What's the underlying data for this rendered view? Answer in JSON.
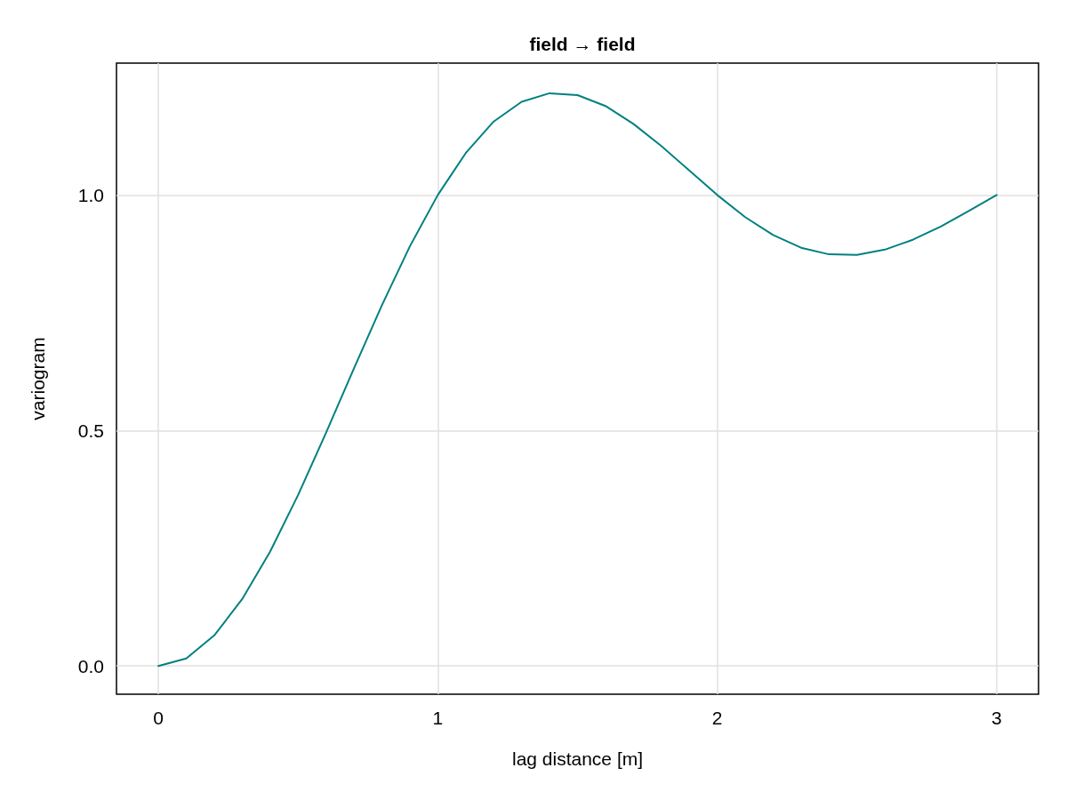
{
  "chart_data": {
    "type": "line",
    "title": "field → field",
    "xlabel": "lag distance [m]",
    "ylabel": "variogram",
    "x": [
      0,
      0.1,
      0.2,
      0.3,
      0.4,
      0.5,
      0.6,
      0.7,
      0.8,
      0.9,
      1.0,
      1.1,
      1.2,
      1.3,
      1.4,
      1.5,
      1.6,
      1.7,
      1.8,
      1.9,
      2.0,
      2.1,
      2.2,
      2.3,
      2.4,
      2.5,
      2.6,
      2.7,
      2.8,
      2.9,
      3.0
    ],
    "series": [
      {
        "color": "#008080",
        "values": [
          0,
          0.016,
          0.065,
          0.142,
          0.243,
          0.363,
          0.495,
          0.632,
          0.766,
          0.891,
          1.0,
          1.089,
          1.156,
          1.198,
          1.216,
          1.212,
          1.189,
          1.151,
          1.104,
          1.052,
          1.0,
          0.953,
          0.915,
          0.888,
          0.874,
          0.873,
          0.884,
          0.905,
          0.933,
          0.966,
          1.0
        ]
      }
    ],
    "xlim": [
      -0.15,
      3.15
    ],
    "xticks": [
      0,
      1,
      2,
      3
    ],
    "ylim": [
      -0.06,
      1.28
    ],
    "yticks": [
      {
        "value": 0,
        "label": "0.0"
      },
      {
        "value": 0.5,
        "label": "0.5"
      },
      {
        "value": 1,
        "label": "1.0"
      }
    ],
    "grid": true,
    "marker": "none",
    "line_style": "solid"
  }
}
